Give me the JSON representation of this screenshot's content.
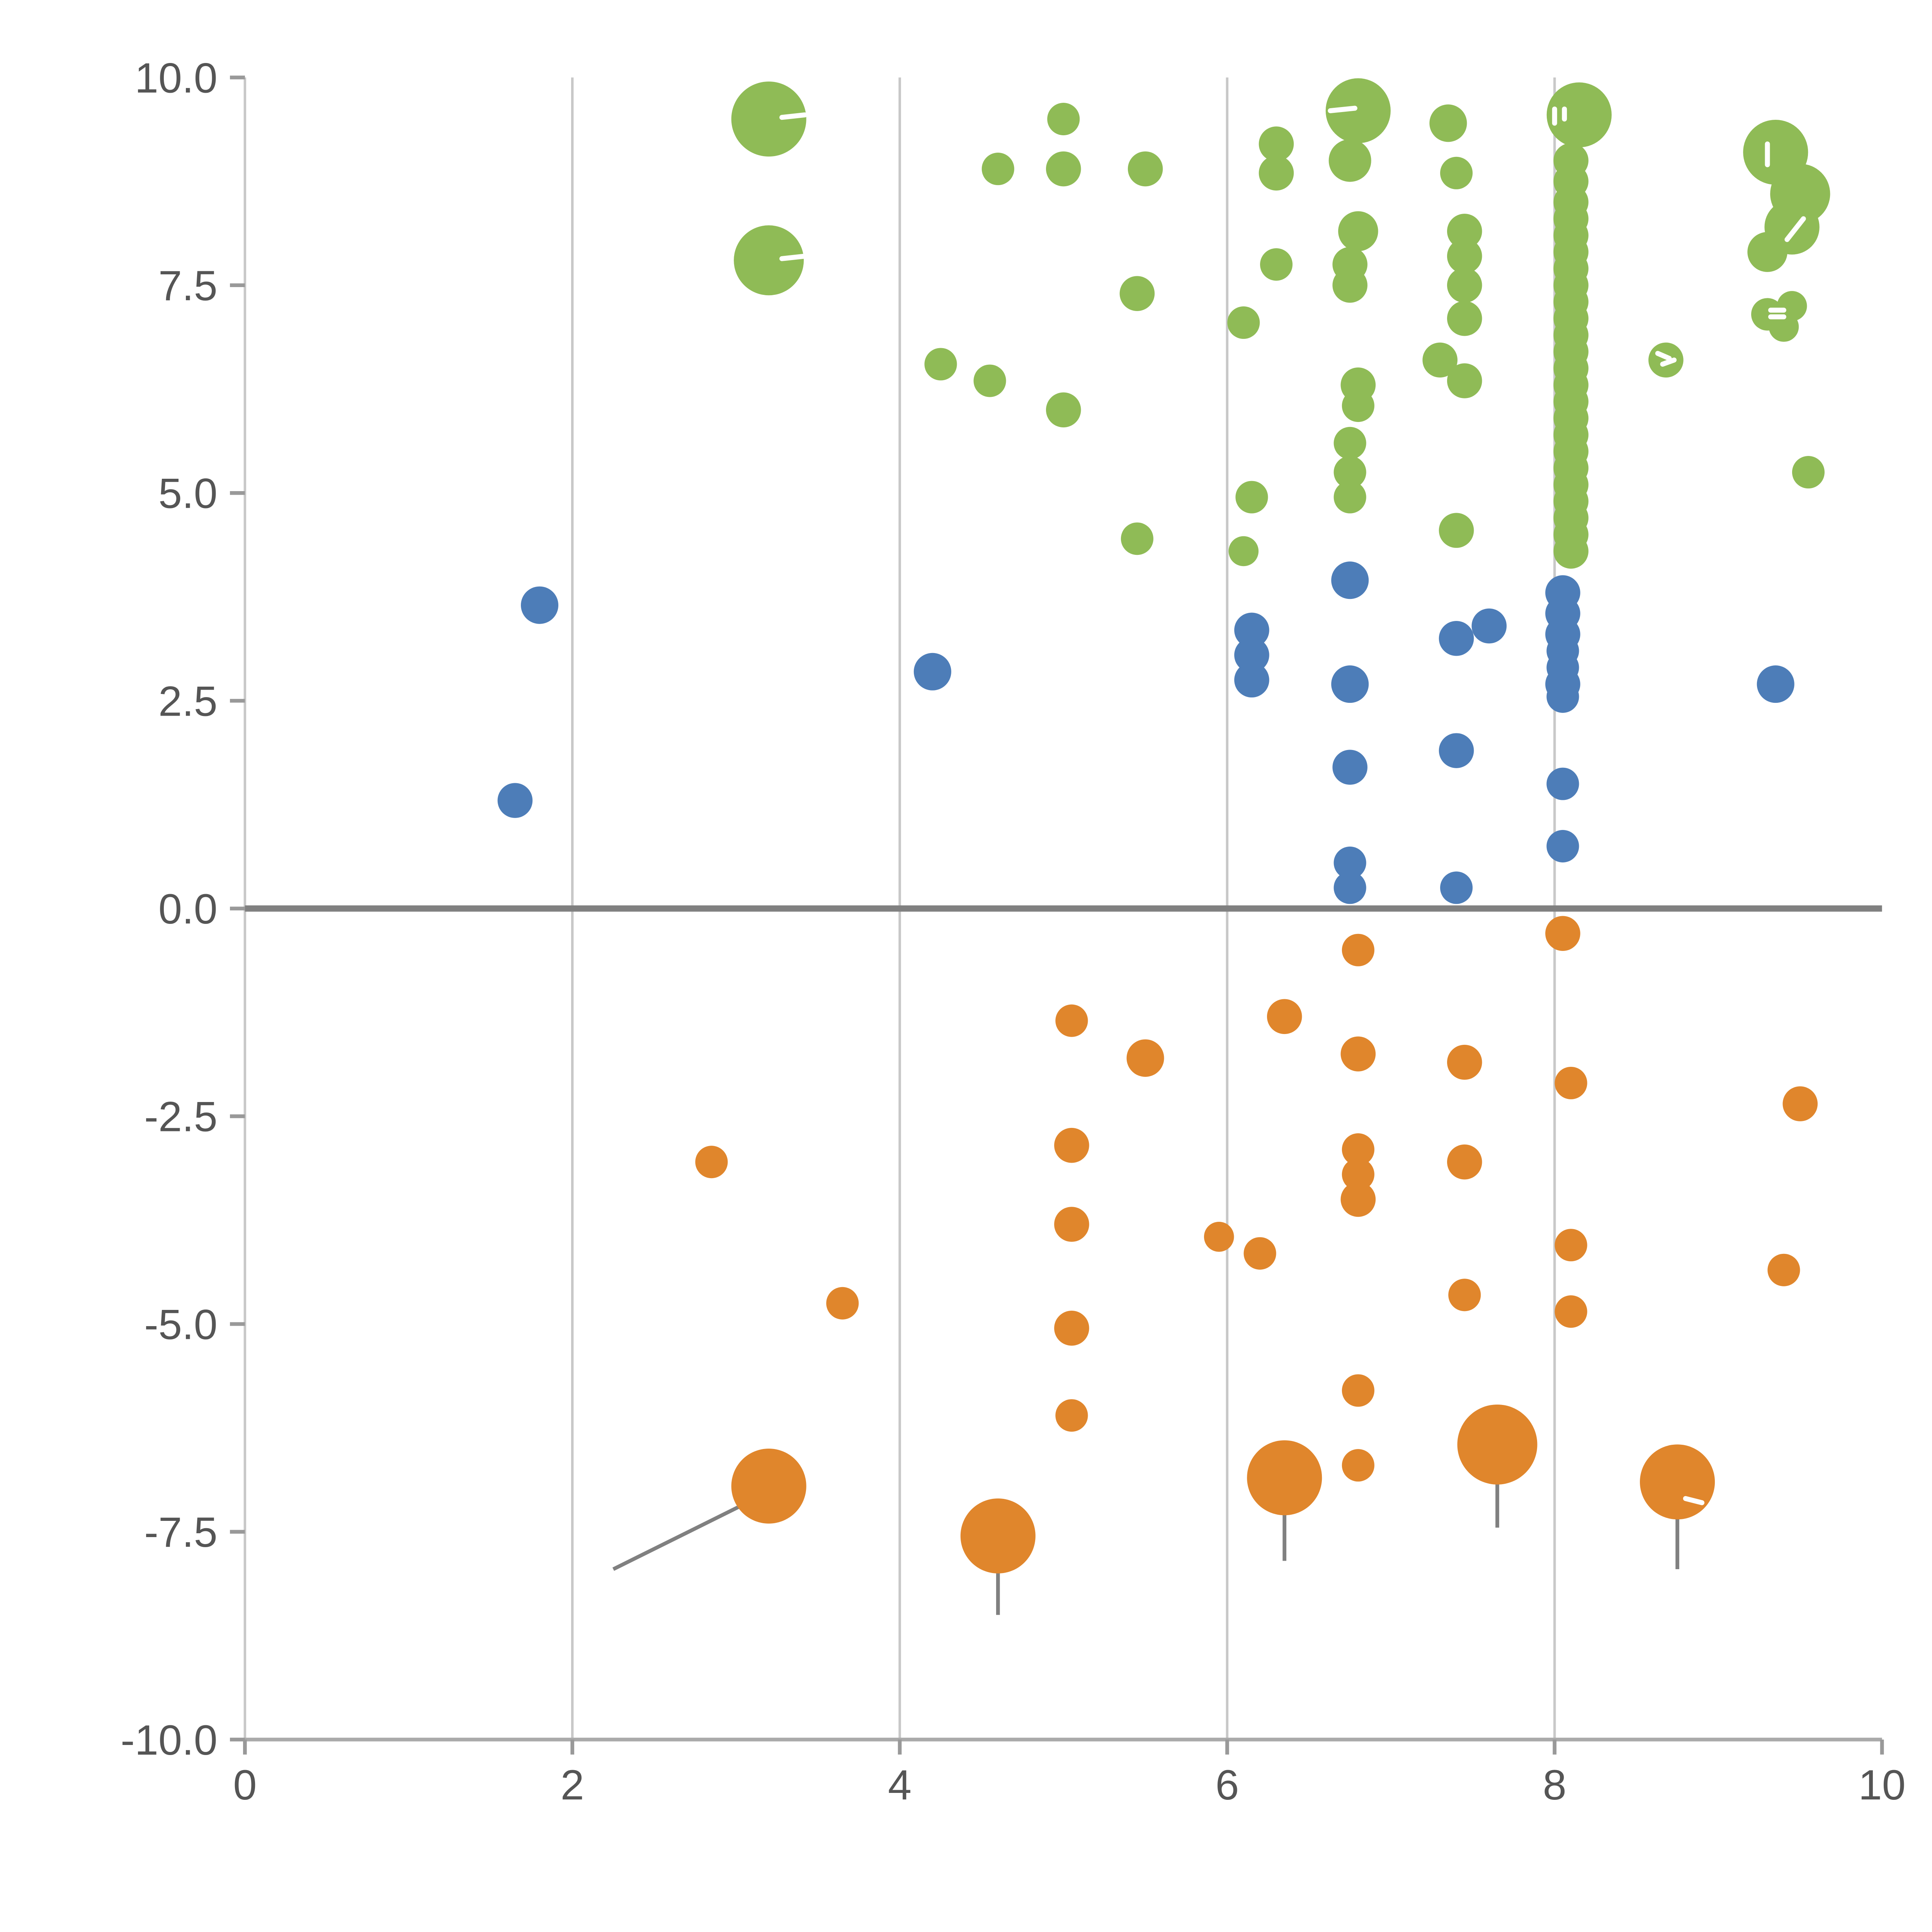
{
  "figure": {
    "background": "#ffffff",
    "colors": {
      "green": "#8fbb56",
      "blue": "#4d7db8",
      "orange": "#e0862c",
      "grid": "#c8c8c8",
      "zero_line": "#808080",
      "spine": "#aaaaaa",
      "tick": "#999999",
      "tick_label": "#555555",
      "error_bar": "#808080",
      "white_mark": "#ffffff"
    }
  },
  "chart_data": {
    "type": "scatter",
    "title": "",
    "xlabel": "",
    "ylabel": "",
    "xlim": [
      0,
      10
    ],
    "ylim": [
      -10,
      10
    ],
    "xticks": [
      0,
      2,
      4,
      6,
      8,
      10
    ],
    "xtick_labels": [
      "0",
      "2",
      "4",
      "6",
      "8",
      "10"
    ],
    "yticks": [
      -10,
      -7.5,
      -5,
      -2.5,
      0,
      2.5,
      5,
      7.5,
      10
    ],
    "ytick_labels": [
      "-10.0",
      "-7.5",
      "-5.0",
      "-2.5",
      "0.0",
      "2.5",
      "5.0",
      "7.5",
      "10.0"
    ],
    "grid": {
      "vertical_at": [
        2,
        4,
        6,
        8
      ],
      "horizontal": false
    },
    "zero_line_y": 0,
    "legend_position": "none",
    "series": [
      {
        "name": "green",
        "color_key": "green",
        "points": [
          [
            3.2,
            9.5,
            30
          ],
          [
            3.2,
            7.8,
            28
          ],
          [
            4.6,
            8.9,
            13
          ],
          [
            5.0,
            9.5,
            13
          ],
          [
            5.0,
            8.9,
            14
          ],
          [
            5.5,
            8.9,
            14
          ],
          [
            4.25,
            6.55,
            13
          ],
          [
            4.55,
            6.35,
            13
          ],
          [
            5.0,
            6.0,
            14
          ],
          [
            5.45,
            7.4,
            14
          ],
          [
            5.45,
            4.45,
            13
          ],
          [
            6.1,
            7.05,
            13
          ],
          [
            6.3,
            9.2,
            14
          ],
          [
            6.3,
            8.85,
            14
          ],
          [
            6.3,
            7.75,
            13
          ],
          [
            6.15,
            4.95,
            13
          ],
          [
            6.1,
            4.3,
            12
          ],
          [
            6.8,
            9.6,
            26
          ],
          [
            6.75,
            9.0,
            17
          ],
          [
            6.8,
            8.15,
            16
          ],
          [
            6.75,
            7.75,
            14
          ],
          [
            6.75,
            7.5,
            14
          ],
          [
            6.8,
            6.3,
            14
          ],
          [
            6.8,
            6.05,
            13
          ],
          [
            6.75,
            5.6,
            13
          ],
          [
            6.75,
            5.25,
            13
          ],
          [
            6.75,
            4.95,
            13
          ],
          [
            7.35,
            9.45,
            15
          ],
          [
            7.4,
            8.85,
            13
          ],
          [
            7.45,
            8.15,
            14
          ],
          [
            7.45,
            7.85,
            14
          ],
          [
            7.45,
            7.5,
            14
          ],
          [
            7.45,
            7.1,
            14
          ],
          [
            7.3,
            6.6,
            14
          ],
          [
            7.45,
            6.35,
            14
          ],
          [
            7.4,
            4.55,
            14
          ],
          [
            8.15,
            9.55,
            26
          ],
          [
            8.1,
            9.0,
            14
          ],
          [
            8.1,
            8.75,
            14
          ],
          [
            8.1,
            8.5,
            14
          ],
          [
            8.1,
            8.3,
            14
          ],
          [
            8.1,
            8.1,
            14
          ],
          [
            8.1,
            7.9,
            14
          ],
          [
            8.1,
            7.7,
            14
          ],
          [
            8.1,
            7.5,
            14
          ],
          [
            8.1,
            7.3,
            14
          ],
          [
            8.1,
            7.1,
            14
          ],
          [
            8.1,
            6.9,
            14
          ],
          [
            8.1,
            6.7,
            14
          ],
          [
            8.1,
            6.5,
            14
          ],
          [
            8.1,
            6.3,
            14
          ],
          [
            8.1,
            6.1,
            14
          ],
          [
            8.1,
            5.9,
            14
          ],
          [
            8.1,
            5.7,
            14
          ],
          [
            8.1,
            5.5,
            14
          ],
          [
            8.1,
            5.3,
            14
          ],
          [
            8.1,
            5.1,
            14
          ],
          [
            8.1,
            4.9,
            14
          ],
          [
            8.1,
            4.7,
            14
          ],
          [
            8.1,
            4.5,
            14
          ],
          [
            8.1,
            4.3,
            14
          ],
          [
            8.68,
            6.6,
            14
          ],
          [
            9.35,
            9.1,
            26
          ],
          [
            9.5,
            8.6,
            24
          ],
          [
            9.45,
            8.2,
            22
          ],
          [
            9.3,
            7.9,
            16
          ],
          [
            9.3,
            7.15,
            13
          ],
          [
            9.45,
            7.25,
            12
          ],
          [
            9.4,
            7.0,
            12
          ],
          [
            9.55,
            5.25,
            13
          ]
        ]
      },
      {
        "name": "blue",
        "color_key": "blue",
        "points": [
          [
            1.8,
            3.65,
            15
          ],
          [
            1.65,
            1.3,
            14
          ],
          [
            4.2,
            2.85,
            15
          ],
          [
            6.15,
            3.35,
            14
          ],
          [
            6.15,
            3.05,
            14
          ],
          [
            6.15,
            2.75,
            14
          ],
          [
            6.75,
            3.95,
            15
          ],
          [
            6.75,
            2.7,
            15
          ],
          [
            6.75,
            1.7,
            14
          ],
          [
            6.75,
            0.55,
            13
          ],
          [
            6.75,
            0.25,
            13
          ],
          [
            7.4,
            3.25,
            14
          ],
          [
            7.6,
            3.4,
            14
          ],
          [
            7.4,
            1.9,
            14
          ],
          [
            7.4,
            0.25,
            13
          ],
          [
            8.05,
            3.8,
            14
          ],
          [
            8.05,
            3.55,
            14
          ],
          [
            8.05,
            3.3,
            14
          ],
          [
            8.05,
            3.1,
            13
          ],
          [
            8.05,
            2.9,
            13
          ],
          [
            8.05,
            2.7,
            14
          ],
          [
            8.05,
            2.55,
            13
          ],
          [
            8.05,
            1.5,
            13
          ],
          [
            8.05,
            0.75,
            13
          ],
          [
            9.35,
            2.7,
            15
          ]
        ]
      },
      {
        "name": "orange",
        "color_key": "orange",
        "points": [
          [
            8.05,
            -0.3,
            14
          ],
          [
            6.8,
            -0.5,
            13
          ],
          [
            6.35,
            -1.3,
            14
          ],
          [
            5.05,
            -1.35,
            13
          ],
          [
            5.5,
            -1.8,
            15
          ],
          [
            6.8,
            -1.75,
            14
          ],
          [
            7.45,
            -1.85,
            14
          ],
          [
            8.1,
            -2.1,
            13
          ],
          [
            9.5,
            -2.35,
            14
          ],
          [
            5.05,
            -2.85,
            14
          ],
          [
            2.85,
            -3.05,
            13
          ],
          [
            6.8,
            -2.9,
            13
          ],
          [
            6.8,
            -3.2,
            13
          ],
          [
            6.8,
            -3.5,
            14
          ],
          [
            7.45,
            -3.05,
            14
          ],
          [
            5.05,
            -3.8,
            14
          ],
          [
            5.95,
            -3.95,
            12
          ],
          [
            6.2,
            -4.15,
            13
          ],
          [
            8.1,
            -4.05,
            13
          ],
          [
            3.65,
            -4.75,
            13
          ],
          [
            7.45,
            -4.65,
            13
          ],
          [
            8.1,
            -4.85,
            13
          ],
          [
            9.4,
            -4.35,
            13
          ],
          [
            5.05,
            -5.05,
            14
          ],
          [
            6.8,
            -5.8,
            13
          ],
          [
            5.05,
            -6.1,
            13
          ],
          [
            6.8,
            -6.7,
            13
          ],
          [
            3.2,
            -6.95,
            30
          ],
          [
            4.6,
            -7.55,
            30
          ],
          [
            6.35,
            -6.85,
            30
          ],
          [
            7.65,
            -6.45,
            32
          ],
          [
            8.75,
            -6.9,
            30
          ]
        ]
      }
    ],
    "error_segments": [
      [
        2.25,
        -7.95,
        3.17,
        -7.05
      ],
      [
        4.6,
        -7.6,
        4.6,
        -8.5
      ],
      [
        6.35,
        -6.9,
        6.35,
        -7.85
      ],
      [
        7.65,
        -6.5,
        7.65,
        -7.45
      ],
      [
        8.75,
        -6.95,
        8.75,
        -7.95
      ]
    ],
    "white_marks": [
      [
        3.28,
        9.52,
        3.42,
        9.55
      ],
      [
        3.28,
        7.82,
        3.42,
        7.85
      ],
      [
        6.63,
        9.6,
        6.78,
        9.63
      ],
      [
        7.5,
        9.35,
        7.5,
        9.55
      ],
      [
        7.56,
        9.35,
        7.56,
        9.55
      ],
      [
        7.62,
        9.38,
        7.62,
        9.52
      ],
      [
        8.0,
        9.45,
        8.0,
        9.62
      ],
      [
        8.06,
        9.5,
        8.06,
        9.62
      ],
      [
        9.3,
        8.95,
        9.3,
        9.2
      ],
      [
        9.42,
        8.05,
        9.52,
        8.3
      ],
      [
        8.63,
        6.68,
        8.7,
        6.62
      ],
      [
        8.66,
        6.55,
        8.73,
        6.6
      ],
      [
        9.32,
        7.2,
        9.4,
        7.2
      ],
      [
        9.32,
        7.12,
        9.4,
        7.12
      ],
      [
        8.8,
        -7.1,
        8.9,
        -7.15
      ]
    ]
  }
}
